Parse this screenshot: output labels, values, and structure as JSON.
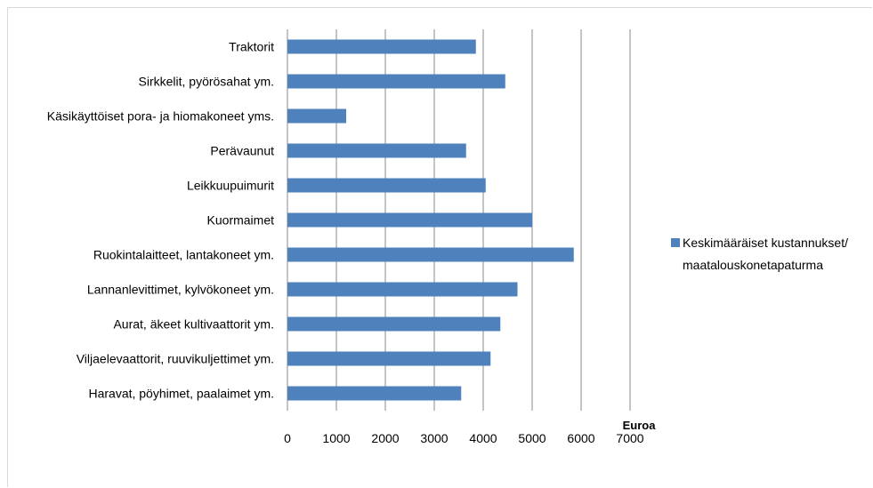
{
  "chart_data": {
    "type": "bar",
    "orientation": "horizontal",
    "categories": [
      "Traktorit",
      "Sirkkelit, pyörösahat ym.",
      "Käsikäyttöiset pora- ja hiomakoneet yms.",
      "Perävaunut",
      "Leikkuupuimurit",
      "Kuormaimet",
      "Ruokintalaitteet, lantakoneet ym.",
      "Lannanlevittimet, kylvökoneet ym.",
      "Aurat, äkeet kultivaattorit ym.",
      "Viljaelevaattorit, ruuvikuljettimet ym.",
      "Haravat, pöyhimet, paalaimet ym."
    ],
    "series": [
      {
        "name": "Keskimääräiset kustannukset/ maatalouskonetapaturma",
        "name_lines": [
          "Keskimääräiset kustannukset/",
          "maatalouskonetapaturma"
        ],
        "values": [
          3850,
          4450,
          1200,
          3650,
          4050,
          5000,
          5850,
          4700,
          4350,
          4150,
          3550
        ],
        "color": "#4f81bd"
      }
    ],
    "x_ticks": [
      "0",
      "1000",
      "2000",
      "3000",
      "4000",
      "5000",
      "6000",
      "7000"
    ],
    "xlim": [
      0,
      7000
    ],
    "xlabel": "Euroa",
    "grid": "vertical",
    "grid_color": "#888888",
    "legend": "right"
  }
}
